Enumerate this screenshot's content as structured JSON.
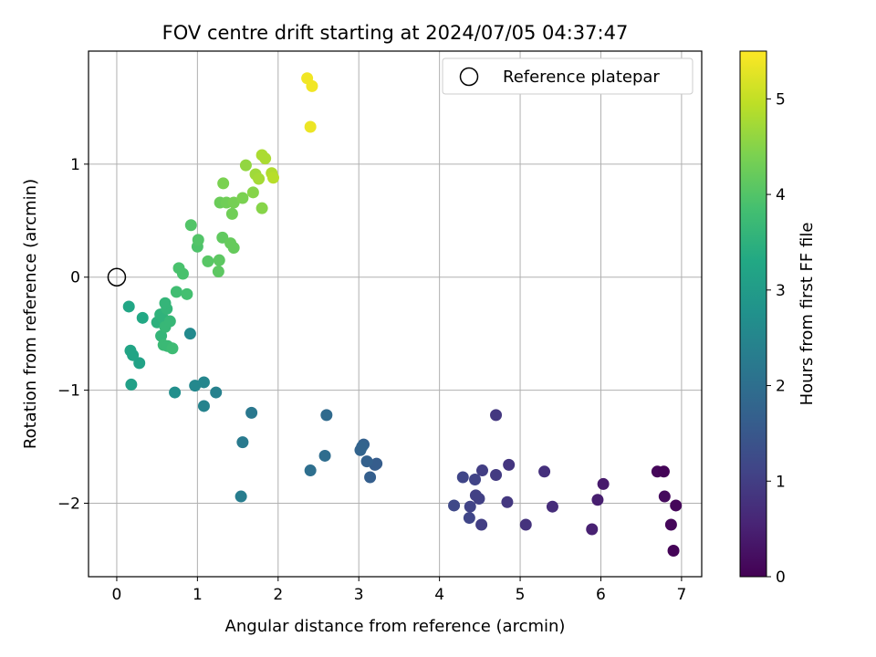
{
  "chart_data": {
    "type": "scatter",
    "title": "FOV centre drift starting at 2024/07/05 04:37:47",
    "xlabel": "Angular distance from reference (arcmin)",
    "ylabel": "Rotation from reference (arcmin)",
    "xlim": [
      -0.35,
      7.25
    ],
    "ylim": [
      -2.65,
      2.0
    ],
    "x_ticks": [
      0,
      1,
      2,
      3,
      4,
      5,
      6,
      7
    ],
    "y_ticks": [
      -2,
      -1,
      0,
      1
    ],
    "grid": true,
    "legend": {
      "position": "top-right",
      "entries": [
        "Reference platepar"
      ]
    },
    "reference_point": {
      "x": 0,
      "y": 0
    },
    "colorbar": {
      "label": "Hours from first FF file",
      "min": 0,
      "max": 5.5,
      "ticks": [
        0,
        1,
        2,
        3,
        4,
        5
      ],
      "colormap": "viridis"
    },
    "points": [
      {
        "x": 6.9,
        "y": -2.42,
        "c": 0.05
      },
      {
        "x": 6.87,
        "y": -2.19,
        "c": 0.1
      },
      {
        "x": 6.93,
        "y": -2.02,
        "c": 0.1
      },
      {
        "x": 6.79,
        "y": -1.94,
        "c": 0.15
      },
      {
        "x": 6.7,
        "y": -1.72,
        "c": 0.1
      },
      {
        "x": 6.78,
        "y": -1.72,
        "c": 0.05
      },
      {
        "x": 6.03,
        "y": -1.83,
        "c": 0.4
      },
      {
        "x": 5.96,
        "y": -1.97,
        "c": 0.45
      },
      {
        "x": 5.89,
        "y": -2.23,
        "c": 0.5
      },
      {
        "x": 5.4,
        "y": -2.03,
        "c": 0.7
      },
      {
        "x": 5.3,
        "y": -1.72,
        "c": 0.75
      },
      {
        "x": 5.07,
        "y": -2.19,
        "c": 0.8
      },
      {
        "x": 4.86,
        "y": -1.66,
        "c": 0.85
      },
      {
        "x": 4.84,
        "y": -1.99,
        "c": 0.9
      },
      {
        "x": 4.7,
        "y": -1.22,
        "c": 0.9
      },
      {
        "x": 4.7,
        "y": -1.75,
        "c": 0.95
      },
      {
        "x": 4.53,
        "y": -1.71,
        "c": 1.0
      },
      {
        "x": 4.52,
        "y": -2.19,
        "c": 1.0
      },
      {
        "x": 4.49,
        "y": -1.96,
        "c": 1.05
      },
      {
        "x": 4.45,
        "y": -1.93,
        "c": 1.05
      },
      {
        "x": 4.44,
        "y": -1.79,
        "c": 1.1
      },
      {
        "x": 4.38,
        "y": -2.03,
        "c": 1.1
      },
      {
        "x": 4.37,
        "y": -2.13,
        "c": 1.15
      },
      {
        "x": 4.29,
        "y": -1.77,
        "c": 1.15
      },
      {
        "x": 4.18,
        "y": -2.02,
        "c": 1.2
      },
      {
        "x": 3.22,
        "y": -1.65,
        "c": 1.6
      },
      {
        "x": 3.2,
        "y": -1.66,
        "c": 1.6
      },
      {
        "x": 3.14,
        "y": -1.77,
        "c": 1.65
      },
      {
        "x": 3.1,
        "y": -1.63,
        "c": 1.7
      },
      {
        "x": 3.06,
        "y": -1.48,
        "c": 1.7
      },
      {
        "x": 3.04,
        "y": -1.5,
        "c": 1.75
      },
      {
        "x": 3.02,
        "y": -1.53,
        "c": 1.75
      },
      {
        "x": 2.6,
        "y": -1.22,
        "c": 1.9
      },
      {
        "x": 2.58,
        "y": -1.58,
        "c": 1.95
      },
      {
        "x": 2.4,
        "y": -1.71,
        "c": 2.0
      },
      {
        "x": 1.67,
        "y": -1.2,
        "c": 2.2
      },
      {
        "x": 1.56,
        "y": -1.46,
        "c": 2.25
      },
      {
        "x": 1.54,
        "y": -1.94,
        "c": 2.3
      },
      {
        "x": 1.23,
        "y": -1.02,
        "c": 2.4
      },
      {
        "x": 1.08,
        "y": -1.14,
        "c": 2.45
      },
      {
        "x": 1.08,
        "y": -0.93,
        "c": 2.5
      },
      {
        "x": 0.97,
        "y": -0.96,
        "c": 2.55
      },
      {
        "x": 0.91,
        "y": -0.5,
        "c": 2.6
      },
      {
        "x": 0.72,
        "y": -1.02,
        "c": 2.7
      },
      {
        "x": 0.18,
        "y": -0.95,
        "c": 3.1
      },
      {
        "x": 0.28,
        "y": -0.76,
        "c": 3.15
      },
      {
        "x": 0.2,
        "y": -0.69,
        "c": 3.2
      },
      {
        "x": 0.17,
        "y": -0.65,
        "c": 3.2
      },
      {
        "x": 0.15,
        "y": -0.26,
        "c": 3.25
      },
      {
        "x": 0.32,
        "y": -0.36,
        "c": 3.3
      },
      {
        "x": 0.5,
        "y": -0.4,
        "c": 3.5
      },
      {
        "x": 0.54,
        "y": -0.33,
        "c": 3.55
      },
      {
        "x": 0.58,
        "y": -0.37,
        "c": 3.55
      },
      {
        "x": 0.62,
        "y": -0.28,
        "c": 3.6
      },
      {
        "x": 0.6,
        "y": -0.23,
        "c": 3.6
      },
      {
        "x": 0.55,
        "y": -0.52,
        "c": 3.6
      },
      {
        "x": 0.6,
        "y": -0.44,
        "c": 3.65
      },
      {
        "x": 0.66,
        "y": -0.39,
        "c": 3.65
      },
      {
        "x": 0.58,
        "y": -0.6,
        "c": 3.7
      },
      {
        "x": 0.63,
        "y": -0.61,
        "c": 3.7
      },
      {
        "x": 0.69,
        "y": -0.63,
        "c": 3.75
      },
      {
        "x": 0.74,
        "y": -0.13,
        "c": 3.8
      },
      {
        "x": 0.87,
        "y": -0.15,
        "c": 3.85
      },
      {
        "x": 0.77,
        "y": 0.08,
        "c": 3.9
      },
      {
        "x": 0.82,
        "y": 0.03,
        "c": 3.9
      },
      {
        "x": 1.0,
        "y": 0.27,
        "c": 3.95
      },
      {
        "x": 1.01,
        "y": 0.33,
        "c": 4.0
      },
      {
        "x": 0.92,
        "y": 0.46,
        "c": 4.0
      },
      {
        "x": 1.13,
        "y": 0.14,
        "c": 4.05
      },
      {
        "x": 1.26,
        "y": 0.05,
        "c": 4.1
      },
      {
        "x": 1.27,
        "y": 0.15,
        "c": 4.1
      },
      {
        "x": 1.31,
        "y": 0.35,
        "c": 4.15
      },
      {
        "x": 1.41,
        "y": 0.3,
        "c": 4.2
      },
      {
        "x": 1.45,
        "y": 0.26,
        "c": 4.2
      },
      {
        "x": 1.28,
        "y": 0.66,
        "c": 4.25
      },
      {
        "x": 1.36,
        "y": 0.66,
        "c": 4.3
      },
      {
        "x": 1.43,
        "y": 0.56,
        "c": 4.3
      },
      {
        "x": 1.45,
        "y": 0.66,
        "c": 4.35
      },
      {
        "x": 1.56,
        "y": 0.7,
        "c": 4.4
      },
      {
        "x": 1.32,
        "y": 0.83,
        "c": 4.4
      },
      {
        "x": 1.69,
        "y": 0.75,
        "c": 4.5
      },
      {
        "x": 1.8,
        "y": 0.61,
        "c": 4.5
      },
      {
        "x": 1.6,
        "y": 0.99,
        "c": 4.6
      },
      {
        "x": 1.72,
        "y": 0.91,
        "c": 4.7
      },
      {
        "x": 1.76,
        "y": 0.87,
        "c": 4.75
      },
      {
        "x": 1.8,
        "y": 1.08,
        "c": 4.8
      },
      {
        "x": 1.84,
        "y": 1.05,
        "c": 4.8
      },
      {
        "x": 1.92,
        "y": 0.92,
        "c": 4.85
      },
      {
        "x": 1.94,
        "y": 0.88,
        "c": 4.9
      },
      {
        "x": 2.36,
        "y": 1.76,
        "c": 5.4
      },
      {
        "x": 2.42,
        "y": 1.69,
        "c": 5.4
      },
      {
        "x": 2.4,
        "y": 1.33,
        "c": 5.35
      }
    ]
  }
}
